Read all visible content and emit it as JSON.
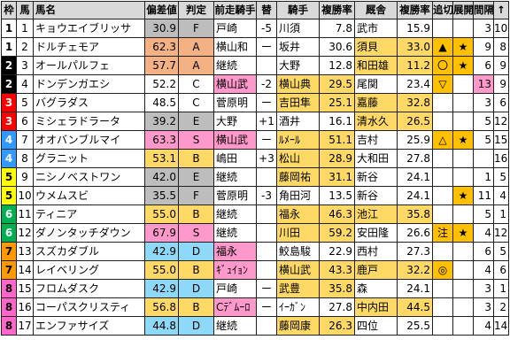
{
  "headers": [
    "枠",
    "馬",
    "馬名",
    "偏差値",
    "判定",
    "前走騎手",
    "替",
    "騎手",
    "複勝率",
    "厩舎",
    "複勝率",
    "追切",
    "展開",
    "間隔",
    "↑"
  ],
  "colors": {
    "frame": {
      "1": "#ffffff",
      "2": "#000000",
      "3": "#ff0000",
      "4": "#3399ff",
      "5": "#ffff00",
      "6": "#00b050",
      "7": "#ff9900",
      "8": "#ff66cc"
    },
    "frame_text": {
      "1": "#000000",
      "2": "#ffffff",
      "3": "#ffffff",
      "4": "#ffffff",
      "5": "#000000",
      "6": "#ffffff",
      "7": "#000000",
      "8": "#000000"
    },
    "rating": {
      "F": "#bdbdbd",
      "E": "#bdbdbd",
      "D": "#8ed8f8",
      "C": "#ffffff",
      "B": "#ffd966",
      "A": "#f4b183",
      "S": "#ff99cc"
    },
    "jockey_highlight": "#ffd966",
    "prev_changed": "#ff99cc",
    "trainer_highlight": "#ffd966",
    "interval_highlight": "#ff99cc",
    "mark_highlight": "#ffc000"
  },
  "rows": [
    {
      "frame": "1",
      "num": "1",
      "name": "キョウエイブリッサ",
      "dev": "30.9",
      "grade": "F",
      "prev": "戸崎",
      "change": "-5",
      "jockey": "川須",
      "jpct": "7.8",
      "trainer": "武市",
      "tpct": "15.9",
      "train": "",
      "tenkai": "",
      "interval": "3",
      "rank": "10",
      "jh": false,
      "th": false,
      "ih": false,
      "ph": false
    },
    {
      "frame": "1",
      "num": "2",
      "name": "ドルチェモア",
      "dev": "62.3",
      "grade": "A",
      "prev": "横山和",
      "change": "ー",
      "jockey": "坂井",
      "jpct": "30.6",
      "trainer": "須貝",
      "tpct": "33.0",
      "train": "▲",
      "tenkai": "★",
      "interval": "9",
      "rank": "8",
      "jh": false,
      "th": true,
      "ih": false,
      "ph": false
    },
    {
      "frame": "2",
      "num": "3",
      "name": "オールパルフェ",
      "dev": "57.7",
      "grade": "A",
      "prev": "継続",
      "change": "",
      "jockey": "大野",
      "jpct": "12.8",
      "trainer": "和田雄",
      "tpct": "11.2",
      "train": "〇",
      "tenkai": "★",
      "interval": "6",
      "rank": "9",
      "jh": false,
      "th": true,
      "ih": false,
      "ph": false
    },
    {
      "frame": "2",
      "num": "4",
      "name": "ドンデンガエシ",
      "dev": "52.2",
      "grade": "C",
      "prev": "横山武",
      "change": "-2",
      "jockey": "横山典",
      "jpct": "29.5",
      "trainer": "尾関",
      "tpct": "23.4",
      "train": "▽",
      "tenkai": "",
      "interval": "13",
      "rank": "9",
      "jh": true,
      "th": false,
      "ih": true,
      "ph": true
    },
    {
      "frame": "3",
      "num": "5",
      "name": "バグラダス",
      "dev": "48.5",
      "grade": "C",
      "prev": "菅原明",
      "change": "ー",
      "jockey": "吉田隼",
      "jpct": "25.1",
      "trainer": "嘉藤",
      "tpct": "32.8",
      "train": "",
      "tenkai": "",
      "interval": "3",
      "rank": "6",
      "jh": true,
      "th": true,
      "ih": false,
      "ph": false
    },
    {
      "frame": "3",
      "num": "6",
      "name": "ミシェラドラータ",
      "dev": "39.2",
      "grade": "E",
      "prev": "大野",
      "change": "+1",
      "jockey": "酒井",
      "jpct": "16.1",
      "trainer": "清水久",
      "tpct": "26.5",
      "train": "",
      "tenkai": "",
      "interval": "5",
      "rank": "12",
      "jh": false,
      "th": true,
      "ih": false,
      "ph": false
    },
    {
      "frame": "4",
      "num": "7",
      "name": "オオバンブルマイ",
      "dev": "63.3",
      "grade": "S",
      "prev": "横山武",
      "change": "ー",
      "jockey": "ﾙﾒｰﾙ",
      "jpct": "51.1",
      "trainer": "吉村",
      "tpct": "25.9",
      "train": "△",
      "tenkai": "★",
      "interval": "5",
      "rank": "15",
      "jh": true,
      "th": false,
      "ih": false,
      "ph": true
    },
    {
      "frame": "4",
      "num": "8",
      "name": "グラニット",
      "dev": "53.1",
      "grade": "B",
      "prev": "嶋田",
      "change": "+3",
      "jockey": "松山",
      "jpct": "28.9",
      "trainer": "大和田",
      "tpct": "27.8",
      "train": "",
      "tenkai": "",
      "interval": "",
      "rank": "16",
      "jh": true,
      "th": false,
      "ih": false,
      "ph": false
    },
    {
      "frame": "5",
      "num": "9",
      "name": "ニシノベストワン",
      "dev": "42.0",
      "grade": "E",
      "prev": "継続",
      "change": "",
      "jockey": "藤岡祐",
      "jpct": "31.1",
      "trainer": "新谷",
      "tpct": "24.1",
      "train": "",
      "tenkai": "",
      "interval": "1",
      "rank": "5",
      "jh": true,
      "th": false,
      "ih": false,
      "ph": false
    },
    {
      "frame": "5",
      "num": "10",
      "name": "ウメムスビ",
      "dev": "35.5",
      "grade": "F",
      "prev": "菅原明",
      "change": "-3",
      "jockey": "角田河",
      "jpct": "13.5",
      "trainer": "新谷",
      "tpct": "24.1",
      "train": "",
      "tenkai": "★",
      "interval": "11",
      "rank": "4",
      "jh": false,
      "th": false,
      "ih": false,
      "ph": false
    },
    {
      "frame": "6",
      "num": "11",
      "name": "ティニア",
      "dev": "55.0",
      "grade": "B",
      "prev": "継続",
      "change": "",
      "jockey": "福永",
      "jpct": "46.3",
      "trainer": "池江",
      "tpct": "35.8",
      "train": "",
      "tenkai": "",
      "interval": "5",
      "rank": "1",
      "jh": true,
      "th": true,
      "ih": false,
      "ph": false
    },
    {
      "frame": "6",
      "num": "12",
      "name": "ダノンタッチダウン",
      "dev": "67.9",
      "grade": "S",
      "prev": "継続",
      "change": "",
      "jockey": "川田",
      "jpct": "59.2",
      "trainer": "安田隆",
      "tpct": "26.6",
      "train": "注",
      "tenkai": "★",
      "interval": "4",
      "rank": "12",
      "jh": true,
      "th": false,
      "ih": false,
      "ph": false
    },
    {
      "frame": "7",
      "num": "13",
      "name": "スズカダブル",
      "dev": "42.9",
      "grade": "D",
      "prev": "福永",
      "change": "",
      "jockey": "鮫島駿",
      "jpct": "22.9",
      "trainer": "西村",
      "tpct": "27.3",
      "train": "",
      "tenkai": "",
      "interval": "6",
      "rank": "5",
      "jh": false,
      "th": false,
      "ih": false,
      "ph": true
    },
    {
      "frame": "7",
      "num": "14",
      "name": "レイベリング",
      "dev": "55.0",
      "grade": "B",
      "prev": "ｷﾞｭｲｮﾝ",
      "change": "",
      "jockey": "横山武",
      "jpct": "43.3",
      "trainer": "鹿戸",
      "tpct": "32.2",
      "train": "◎",
      "tenkai": "",
      "interval": "4",
      "rank": "6",
      "jh": true,
      "th": true,
      "ih": false,
      "ph": true
    },
    {
      "frame": "8",
      "num": "15",
      "name": "フロムダスク",
      "dev": "42.9",
      "grade": "D",
      "prev": "戸崎",
      "change": "ー",
      "jockey": "武豊",
      "jpct": "35.8",
      "trainer": "森",
      "tpct": "24.1",
      "train": "",
      "tenkai": "",
      "interval": "3",
      "rank": "1",
      "jh": true,
      "th": false,
      "ih": false,
      "ph": false
    },
    {
      "frame": "8",
      "num": "16",
      "name": "コーパスクリスティ",
      "dev": "56.8",
      "grade": "B",
      "prev": "Cﾃﾞﾑｰﾛ",
      "change": "ー",
      "jockey": "ｲｰｶﾞﾝ",
      "jpct": "27.8",
      "trainer": "中内田",
      "tpct": "44.5",
      "train": "",
      "tenkai": "",
      "interval": "3",
      "rank": "2",
      "jh": false,
      "th": true,
      "ih": false,
      "ph": true
    },
    {
      "frame": "8",
      "num": "17",
      "name": "エンファサイズ",
      "dev": "44.8",
      "grade": "D",
      "prev": "継続",
      "change": "",
      "jockey": "藤岡康",
      "jpct": "26.3",
      "trainer": "四位",
      "tpct": "25.5",
      "train": "",
      "tenkai": "",
      "interval": "4",
      "rank": "14",
      "jh": true,
      "th": false,
      "ih": false,
      "ph": false
    }
  ]
}
